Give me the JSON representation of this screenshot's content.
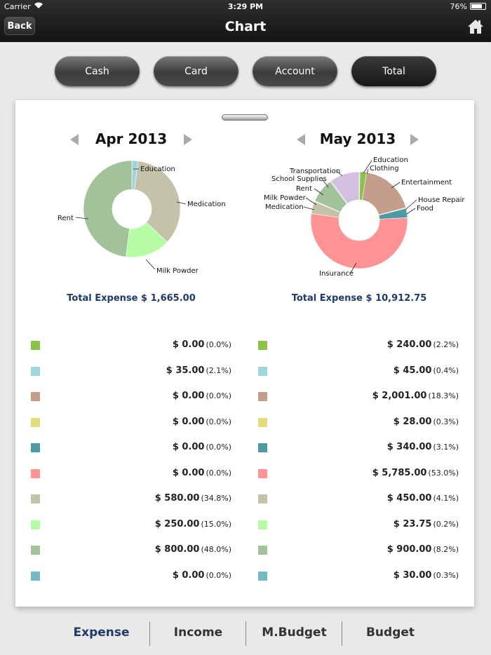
{
  "status": {
    "carrier": "Carrier",
    "time": "3:29 PM",
    "battery": "76%"
  },
  "nav": {
    "back": "Back",
    "title": "Chart"
  },
  "segments": [
    "Cash",
    "Card",
    "Account",
    "Total"
  ],
  "tabs": [
    "Expense",
    "Income",
    "M.Budget",
    "Budget"
  ],
  "colors": [
    "#8bc34a",
    "#9fd6dc",
    "#c49e8a",
    "#e2dc7a",
    "#4e9aa6",
    "#ff9393",
    "#c4c2a8",
    "#b5fca4",
    "#a2c39a",
    "#74b8c6",
    "#d4bfe0"
  ],
  "chart_data": [
    {
      "type": "pie",
      "title": "Apr 2013",
      "total_label": "Total Expense $ 1,665.00",
      "slices": [
        {
          "name": "Education",
          "value": 35.0,
          "color": "#9fd6dc"
        },
        {
          "name": "Medication",
          "value": 580.0,
          "color": "#c4c2a8"
        },
        {
          "name": "Milk Powder",
          "value": 250.0,
          "color": "#b5fca4"
        },
        {
          "name": "Rent",
          "value": 800.0,
          "color": "#a2c39a"
        }
      ],
      "legend": [
        {
          "amount": "$ 0.00",
          "pct": "(0.0%)",
          "color": "#8bc34a"
        },
        {
          "amount": "$ 35.00",
          "pct": "(2.1%)",
          "color": "#9fd6dc"
        },
        {
          "amount": "$ 0.00",
          "pct": "(0.0%)",
          "color": "#c49e8a"
        },
        {
          "amount": "$ 0.00",
          "pct": "(0.0%)",
          "color": "#e2dc7a"
        },
        {
          "amount": "$ 0.00",
          "pct": "(0.0%)",
          "color": "#4e9aa6"
        },
        {
          "amount": "$ 0.00",
          "pct": "(0.0%)",
          "color": "#ff9393"
        },
        {
          "amount": "$ 580.00",
          "pct": "(34.8%)",
          "color": "#c4c2a8"
        },
        {
          "amount": "$ 250.00",
          "pct": "(15.0%)",
          "color": "#b5fca4"
        },
        {
          "amount": "$ 800.00",
          "pct": "(48.0%)",
          "color": "#a2c39a"
        },
        {
          "amount": "$ 0.00",
          "pct": "(0.0%)",
          "color": "#74b8c6"
        }
      ]
    },
    {
      "type": "pie",
      "title": "May 2013",
      "total_label": "Total Expense $ 10,912.75",
      "slices": [
        {
          "name": "Education",
          "value": 30.0,
          "color": "#74b8c6"
        },
        {
          "name": "Clothing",
          "value": 240.0,
          "color": "#8bc34a"
        },
        {
          "name": "Entertainment",
          "value": 2001.0,
          "color": "#c49e8a"
        },
        {
          "name": "House Repair",
          "value": 28.0,
          "color": "#e2dc7a"
        },
        {
          "name": "Food",
          "value": 340.0,
          "color": "#4e9aa6"
        },
        {
          "name": "Insurance",
          "value": 5785.0,
          "color": "#ff9393"
        },
        {
          "name": "Medication",
          "value": 450.0,
          "color": "#c4c2a8"
        },
        {
          "name": "Milk Powder",
          "value": 23.75,
          "color": "#b5fca4"
        },
        {
          "name": "Rent",
          "value": 900.0,
          "color": "#a2c39a"
        },
        {
          "name": "School Supplies",
          "value": 45.0,
          "color": "#9fd6dc"
        },
        {
          "name": "Transportation",
          "value": 1070.0,
          "color": "#d4bfe0"
        }
      ],
      "legend": [
        {
          "amount": "$ 240.00",
          "pct": "(2.2%)",
          "color": "#8bc34a"
        },
        {
          "amount": "$ 45.00",
          "pct": "(0.4%)",
          "color": "#9fd6dc"
        },
        {
          "amount": "$ 2,001.00",
          "pct": "(18.3%)",
          "color": "#c49e8a"
        },
        {
          "amount": "$ 28.00",
          "pct": "(0.3%)",
          "color": "#e2dc7a"
        },
        {
          "amount": "$ 340.00",
          "pct": "(3.1%)",
          "color": "#4e9aa6"
        },
        {
          "amount": "$ 5,785.00",
          "pct": "(53.0%)",
          "color": "#ff9393"
        },
        {
          "amount": "$ 450.00",
          "pct": "(4.1%)",
          "color": "#c4c2a8"
        },
        {
          "amount": "$ 23.75",
          "pct": "(0.2%)",
          "color": "#b5fca4"
        },
        {
          "amount": "$ 900.00",
          "pct": "(8.2%)",
          "color": "#a2c39a"
        },
        {
          "amount": "$ 30.00",
          "pct": "(0.3%)",
          "color": "#74b8c6"
        }
      ]
    }
  ]
}
